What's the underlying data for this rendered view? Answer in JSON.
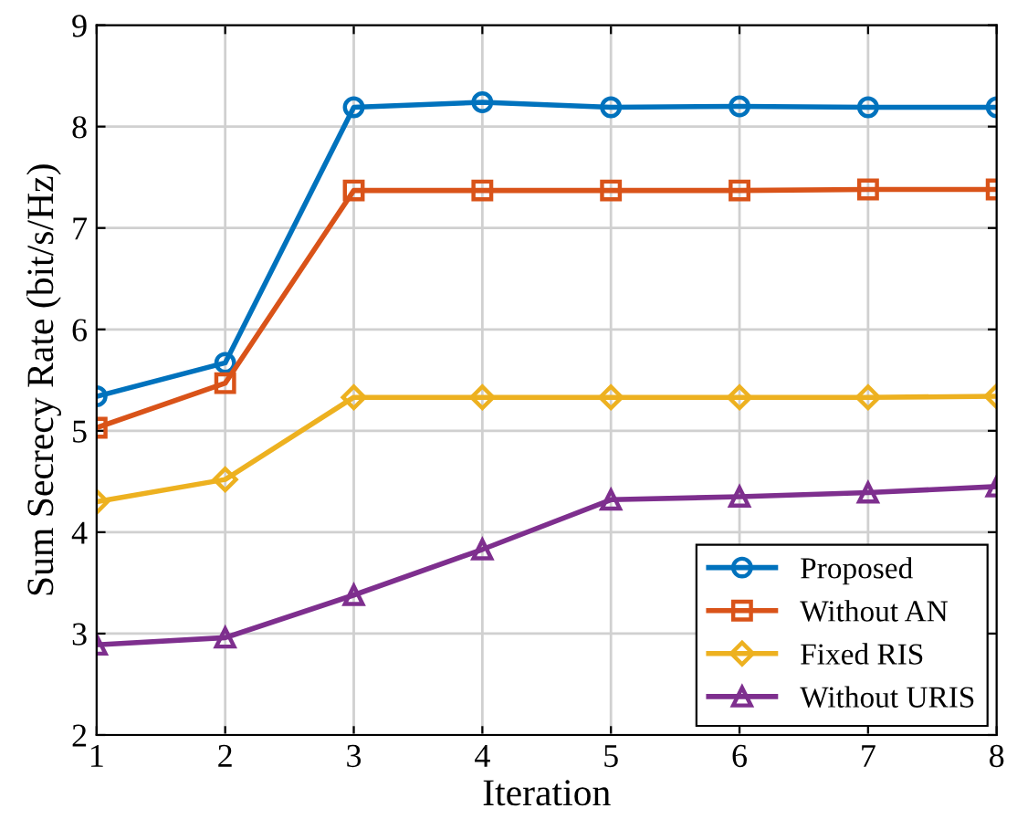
{
  "chart_data": {
    "type": "line",
    "xlabel": "Iteration",
    "ylabel": "Sum Secrecy Rate (bit/s/Hz)",
    "x": [
      1,
      2,
      3,
      4,
      5,
      6,
      7,
      8
    ],
    "xlim": [
      1,
      8
    ],
    "xticks": [
      1,
      2,
      3,
      4,
      5,
      6,
      7,
      8
    ],
    "ylim": [
      2,
      9
    ],
    "yticks": [
      2,
      3,
      4,
      5,
      6,
      7,
      8,
      9
    ],
    "grid": true,
    "legend": "bottom right",
    "series": [
      {
        "name": "Proposed",
        "color": "#0072bd",
        "marker": "circle",
        "values": [
          5.34,
          5.67,
          8.19,
          8.24,
          8.19,
          8.2,
          8.19,
          8.19
        ]
      },
      {
        "name": "Without AN",
        "color": "#d95319",
        "marker": "square",
        "values": [
          5.03,
          5.47,
          7.37,
          7.37,
          7.37,
          7.37,
          7.38,
          7.38
        ]
      },
      {
        "name": "Fixed RIS",
        "color": "#edb120",
        "marker": "diamond",
        "values": [
          4.3,
          4.52,
          5.33,
          5.33,
          5.33,
          5.33,
          5.33,
          5.34
        ]
      },
      {
        "name": "Without URIS",
        "color": "#7e2f8e",
        "marker": "triangle",
        "values": [
          2.89,
          2.96,
          3.38,
          3.83,
          4.32,
          4.35,
          4.39,
          4.45
        ]
      }
    ]
  }
}
